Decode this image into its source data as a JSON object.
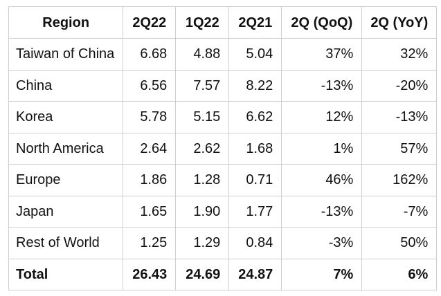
{
  "table": {
    "headers": [
      "Region",
      "2Q22",
      "1Q22",
      "2Q21",
      "2Q (QoQ)",
      "2Q (YoY)"
    ],
    "rows": [
      {
        "region": "Taiwan of China",
        "q2_22": "6.68",
        "q1_22": "4.88",
        "q2_21": "5.04",
        "qoq": "37%",
        "yoy": "32%"
      },
      {
        "region": "China",
        "q2_22": "6.56",
        "q1_22": "7.57",
        "q2_21": "8.22",
        "qoq": "-13%",
        "yoy": "-20%"
      },
      {
        "region": "Korea",
        "q2_22": "5.78",
        "q1_22": "5.15",
        "q2_21": "6.62",
        "qoq": "12%",
        "yoy": "-13%"
      },
      {
        "region": "North America",
        "q2_22": "2.64",
        "q1_22": "2.62",
        "q2_21": "1.68",
        "qoq": "1%",
        "yoy": "57%"
      },
      {
        "region": "Europe",
        "q2_22": "1.86",
        "q1_22": "1.28",
        "q2_21": "0.71",
        "qoq": "46%",
        "yoy": "162%"
      },
      {
        "region": "Japan",
        "q2_22": "1.65",
        "q1_22": "1.90",
        "q2_21": "1.77",
        "qoq": "-13%",
        "yoy": "-7%"
      },
      {
        "region": "Rest of World",
        "q2_22": "1.25",
        "q1_22": "1.29",
        "q2_21": "0.84",
        "qoq": "-3%",
        "yoy": "50%"
      }
    ],
    "total": {
      "region": "Total",
      "q2_22": "26.43",
      "q1_22": "24.69",
      "q2_21": "24.87",
      "qoq": "7%",
      "yoy": "6%"
    }
  }
}
